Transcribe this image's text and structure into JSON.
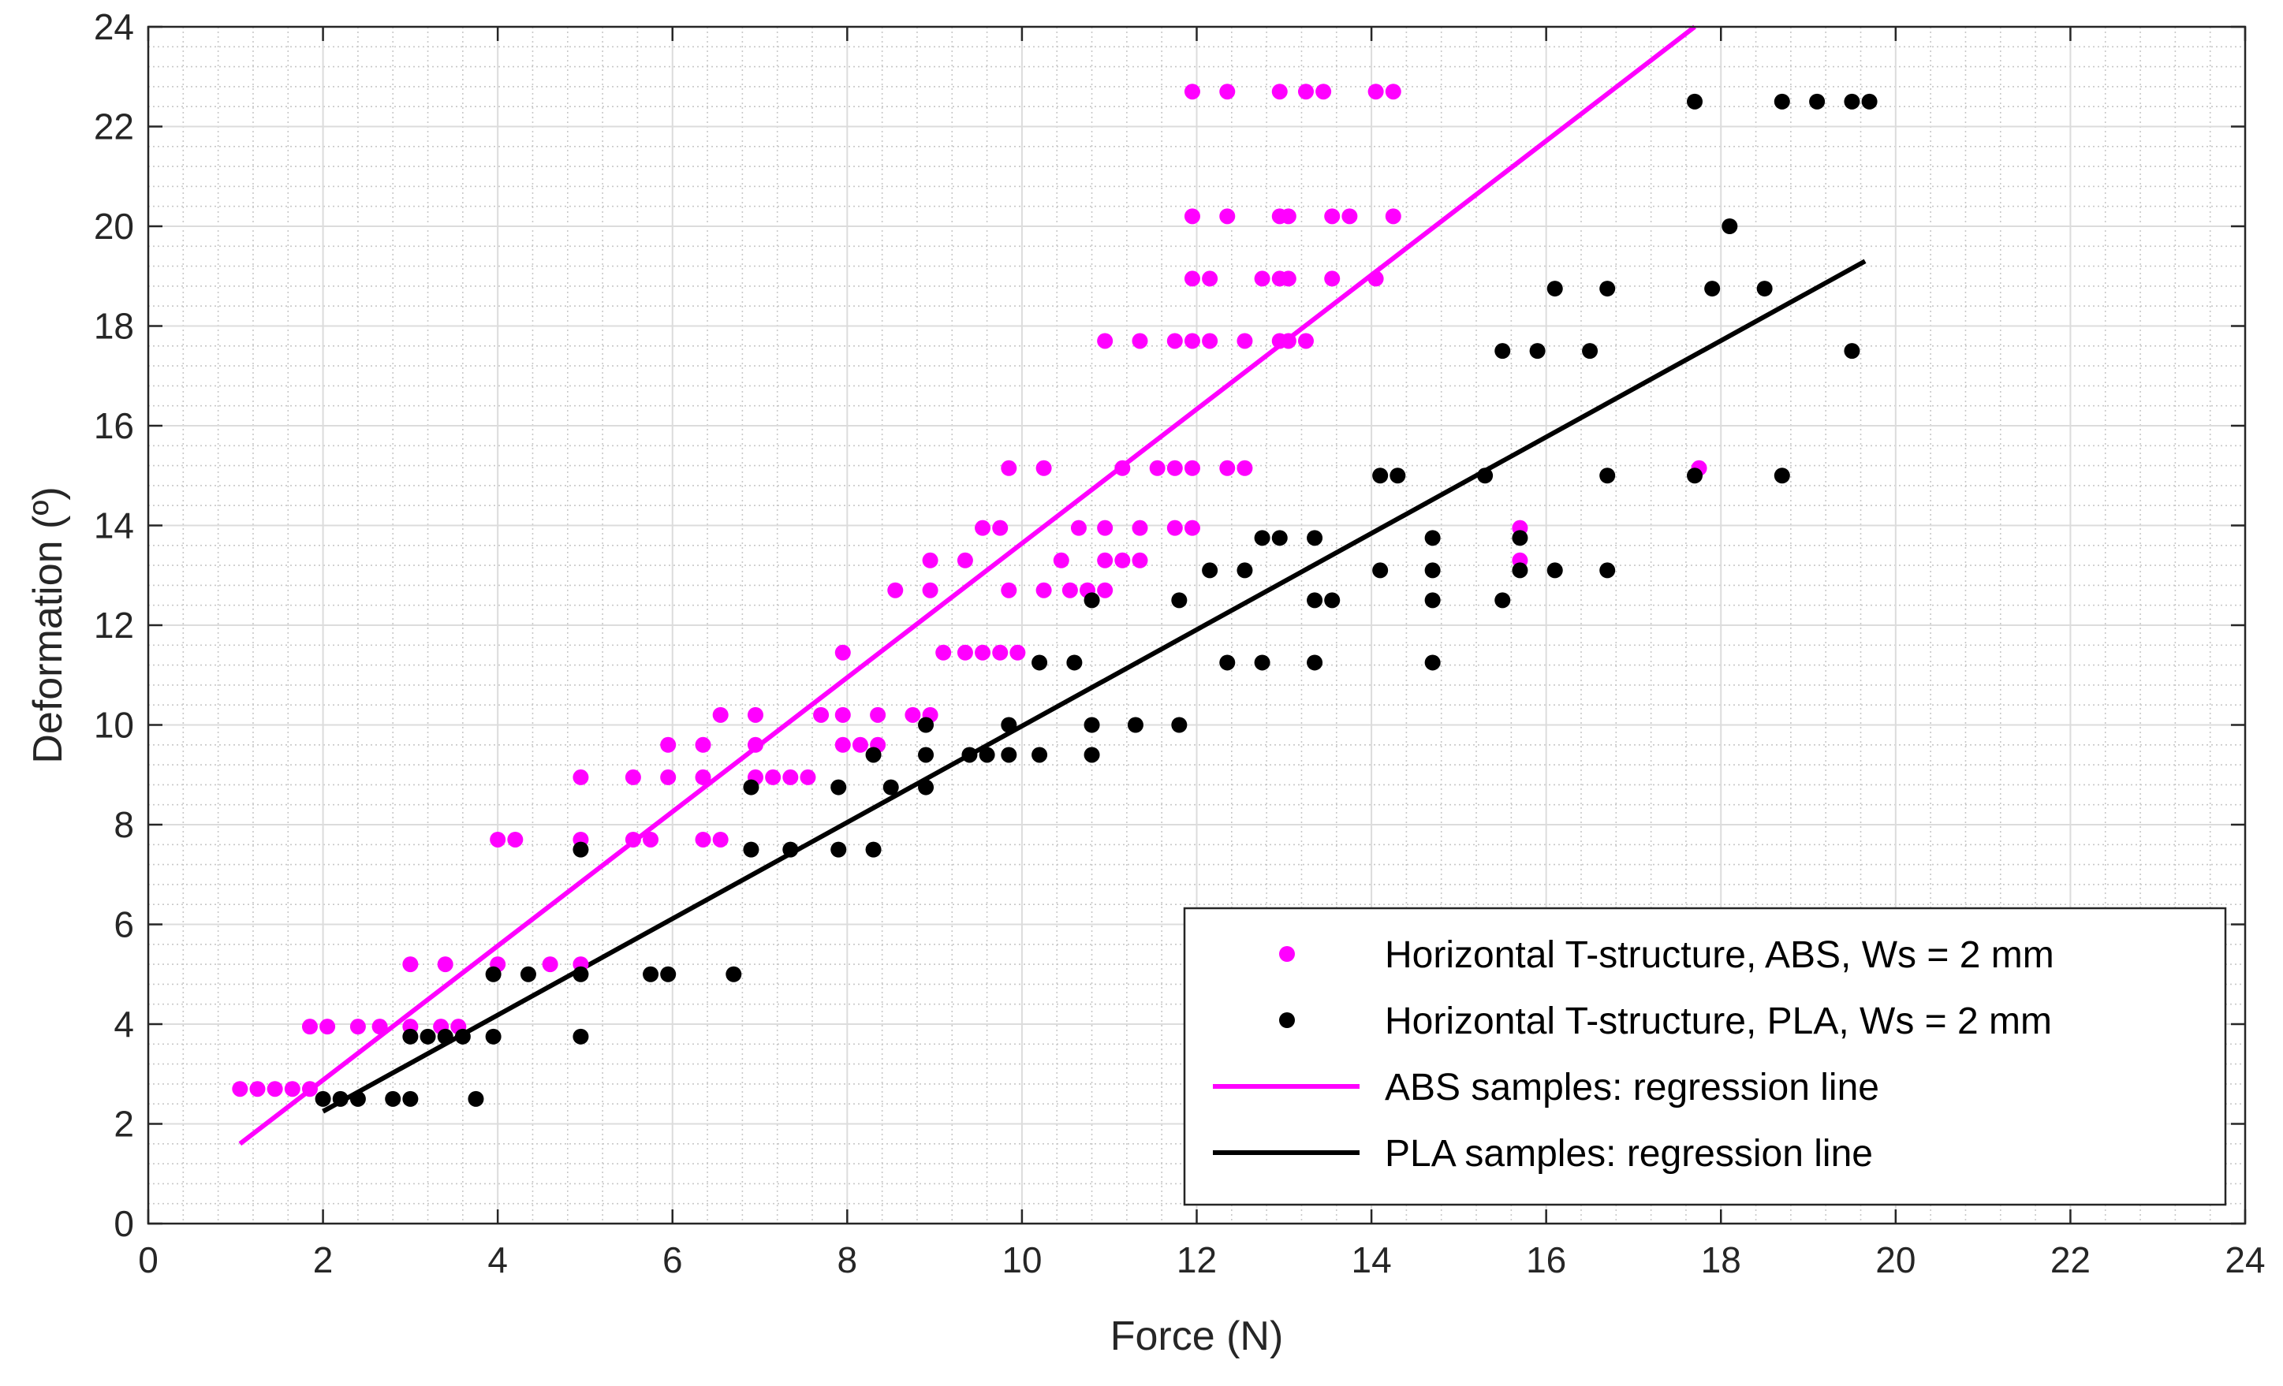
{
  "chart_data": {
    "type": "scatter",
    "xlabel": "Force (N)",
    "ylabel": "Deformation (º)",
    "xlim": [
      0,
      24
    ],
    "ylim": [
      0,
      24
    ],
    "xticks": [
      "0",
      "2",
      "4",
      "6",
      "8",
      "10",
      "12",
      "14",
      "16",
      "18",
      "20",
      "22",
      "24"
    ],
    "yticks": [
      "0",
      "2",
      "4",
      "6",
      "8",
      "10",
      "12",
      "14",
      "16",
      "18",
      "20",
      "22",
      "24"
    ],
    "grid": true,
    "minor_grid": true,
    "legend_position": "bottom-right",
    "series": [
      {
        "name": "Horizontal T-structure, ABS, Ws = 2 mm",
        "kind": "scatter",
        "color": "#ff00ff",
        "points": [
          [
            1.05,
            2.7
          ],
          [
            1.25,
            2.7
          ],
          [
            1.45,
            2.7
          ],
          [
            1.65,
            2.7
          ],
          [
            1.85,
            2.7
          ],
          [
            1.85,
            3.95
          ],
          [
            2.05,
            3.95
          ],
          [
            2.4,
            3.95
          ],
          [
            2.65,
            3.95
          ],
          [
            3.0,
            3.95
          ],
          [
            3.35,
            3.95
          ],
          [
            3.55,
            3.95
          ],
          [
            3.0,
            5.2
          ],
          [
            3.4,
            5.2
          ],
          [
            4.0,
            5.2
          ],
          [
            4.6,
            5.2
          ],
          [
            4.95,
            5.2
          ],
          [
            4.0,
            7.7
          ],
          [
            4.2,
            7.7
          ],
          [
            4.95,
            7.7
          ],
          [
            5.55,
            7.7
          ],
          [
            5.75,
            7.7
          ],
          [
            6.35,
            7.7
          ],
          [
            6.55,
            7.7
          ],
          [
            4.95,
            8.95
          ],
          [
            5.55,
            8.95
          ],
          [
            5.95,
            8.95
          ],
          [
            6.35,
            8.95
          ],
          [
            6.95,
            8.95
          ],
          [
            7.15,
            8.95
          ],
          [
            7.35,
            8.95
          ],
          [
            7.55,
            8.95
          ],
          [
            5.95,
            9.6
          ],
          [
            6.35,
            9.6
          ],
          [
            6.95,
            9.6
          ],
          [
            7.95,
            9.6
          ],
          [
            8.15,
            9.6
          ],
          [
            8.35,
            9.6
          ],
          [
            6.55,
            10.2
          ],
          [
            6.95,
            10.2
          ],
          [
            7.7,
            10.2
          ],
          [
            7.95,
            10.2
          ],
          [
            8.35,
            10.2
          ],
          [
            8.75,
            10.2
          ],
          [
            8.95,
            10.2
          ],
          [
            7.95,
            11.45
          ],
          [
            9.1,
            11.45
          ],
          [
            9.35,
            11.45
          ],
          [
            9.55,
            11.45
          ],
          [
            9.75,
            11.45
          ],
          [
            9.95,
            11.45
          ],
          [
            8.55,
            12.7
          ],
          [
            8.95,
            12.7
          ],
          [
            9.85,
            12.7
          ],
          [
            10.25,
            12.7
          ],
          [
            10.55,
            12.7
          ],
          [
            10.75,
            12.7
          ],
          [
            10.95,
            12.7
          ],
          [
            8.95,
            13.3
          ],
          [
            9.35,
            13.3
          ],
          [
            10.45,
            13.3
          ],
          [
            10.95,
            13.3
          ],
          [
            11.15,
            13.3
          ],
          [
            11.35,
            13.3
          ],
          [
            15.7,
            13.3
          ],
          [
            9.55,
            13.95
          ],
          [
            9.75,
            13.95
          ],
          [
            10.65,
            13.95
          ],
          [
            10.95,
            13.95
          ],
          [
            11.35,
            13.95
          ],
          [
            11.75,
            13.95
          ],
          [
            11.95,
            13.95
          ],
          [
            15.7,
            13.95
          ],
          [
            9.85,
            15.15
          ],
          [
            10.25,
            15.15
          ],
          [
            11.15,
            15.15
          ],
          [
            11.55,
            15.15
          ],
          [
            11.75,
            15.15
          ],
          [
            11.95,
            15.15
          ],
          [
            12.35,
            15.15
          ],
          [
            12.55,
            15.15
          ],
          [
            17.75,
            15.15
          ],
          [
            10.95,
            17.7
          ],
          [
            11.35,
            17.7
          ],
          [
            11.75,
            17.7
          ],
          [
            11.95,
            17.7
          ],
          [
            12.15,
            17.7
          ],
          [
            12.55,
            17.7
          ],
          [
            12.95,
            17.7
          ],
          [
            13.05,
            17.7
          ],
          [
            13.25,
            17.7
          ],
          [
            11.95,
            18.95
          ],
          [
            12.15,
            18.95
          ],
          [
            12.75,
            18.95
          ],
          [
            12.95,
            18.95
          ],
          [
            13.05,
            18.95
          ],
          [
            13.55,
            18.95
          ],
          [
            14.05,
            18.95
          ],
          [
            11.95,
            20.2
          ],
          [
            12.35,
            20.2
          ],
          [
            12.95,
            20.2
          ],
          [
            13.05,
            20.2
          ],
          [
            13.55,
            20.2
          ],
          [
            13.75,
            20.2
          ],
          [
            14.25,
            20.2
          ],
          [
            11.95,
            22.7
          ],
          [
            12.35,
            22.7
          ],
          [
            12.95,
            22.7
          ],
          [
            13.25,
            22.7
          ],
          [
            13.45,
            22.7
          ],
          [
            14.05,
            22.7
          ],
          [
            14.25,
            22.7
          ]
        ]
      },
      {
        "name": "Horizontal T-structure, PLA, Ws = 2 mm",
        "kind": "scatter",
        "color": "#000000",
        "points": [
          [
            2.0,
            2.5
          ],
          [
            2.2,
            2.5
          ],
          [
            2.4,
            2.5
          ],
          [
            2.8,
            2.5
          ],
          [
            3.0,
            2.5
          ],
          [
            3.75,
            2.5
          ],
          [
            3.0,
            3.75
          ],
          [
            3.2,
            3.75
          ],
          [
            3.4,
            3.75
          ],
          [
            3.6,
            3.75
          ],
          [
            3.95,
            3.75
          ],
          [
            4.95,
            3.75
          ],
          [
            3.95,
            5.0
          ],
          [
            4.35,
            5.0
          ],
          [
            4.95,
            5.0
          ],
          [
            5.75,
            5.0
          ],
          [
            5.95,
            5.0
          ],
          [
            6.7,
            5.0
          ],
          [
            4.95,
            7.5
          ],
          [
            6.9,
            7.5
          ],
          [
            7.35,
            7.5
          ],
          [
            7.9,
            7.5
          ],
          [
            8.3,
            7.5
          ],
          [
            6.9,
            8.75
          ],
          [
            7.9,
            8.75
          ],
          [
            8.5,
            8.75
          ],
          [
            8.9,
            8.75
          ],
          [
            8.3,
            9.4
          ],
          [
            8.9,
            9.4
          ],
          [
            9.4,
            9.4
          ],
          [
            9.6,
            9.4
          ],
          [
            9.85,
            9.4
          ],
          [
            10.2,
            9.4
          ],
          [
            10.8,
            9.4
          ],
          [
            8.9,
            10.0
          ],
          [
            9.85,
            10.0
          ],
          [
            10.8,
            10.0
          ],
          [
            11.3,
            10.0
          ],
          [
            11.8,
            10.0
          ],
          [
            10.2,
            11.25
          ],
          [
            10.6,
            11.25
          ],
          [
            12.35,
            11.25
          ],
          [
            12.75,
            11.25
          ],
          [
            13.35,
            11.25
          ],
          [
            14.7,
            11.25
          ],
          [
            10.8,
            12.5
          ],
          [
            11.8,
            12.5
          ],
          [
            13.35,
            12.5
          ],
          [
            13.55,
            12.5
          ],
          [
            14.7,
            12.5
          ],
          [
            15.5,
            12.5
          ],
          [
            12.15,
            13.1
          ],
          [
            12.55,
            13.1
          ],
          [
            14.1,
            13.1
          ],
          [
            14.7,
            13.1
          ],
          [
            15.7,
            13.1
          ],
          [
            16.1,
            13.1
          ],
          [
            16.7,
            13.1
          ],
          [
            12.75,
            13.75
          ],
          [
            12.95,
            13.75
          ],
          [
            13.35,
            13.75
          ],
          [
            14.7,
            13.75
          ],
          [
            15.7,
            13.75
          ],
          [
            14.1,
            15.0
          ],
          [
            14.3,
            15.0
          ],
          [
            15.3,
            15.0
          ],
          [
            16.7,
            15.0
          ],
          [
            17.7,
            15.0
          ],
          [
            18.7,
            15.0
          ],
          [
            15.5,
            17.5
          ],
          [
            15.9,
            17.5
          ],
          [
            16.5,
            17.5
          ],
          [
            19.5,
            17.5
          ],
          [
            16.1,
            18.75
          ],
          [
            16.7,
            18.75
          ],
          [
            17.9,
            18.75
          ],
          [
            18.5,
            18.75
          ],
          [
            18.1,
            20.0
          ],
          [
            17.7,
            22.5
          ],
          [
            18.7,
            22.5
          ],
          [
            19.1,
            22.5
          ],
          [
            19.5,
            22.5
          ],
          [
            19.7,
            22.5
          ]
        ]
      },
      {
        "name": "ABS samples: regression line",
        "kind": "line",
        "color": "#ff00ff",
        "x": [
          1.05,
          17.7
        ],
        "y": [
          1.6,
          24.0
        ]
      },
      {
        "name": "PLA samples: regression line",
        "kind": "line",
        "color": "#000000",
        "x": [
          2.0,
          19.65
        ],
        "y": [
          2.25,
          19.3
        ]
      }
    ]
  }
}
